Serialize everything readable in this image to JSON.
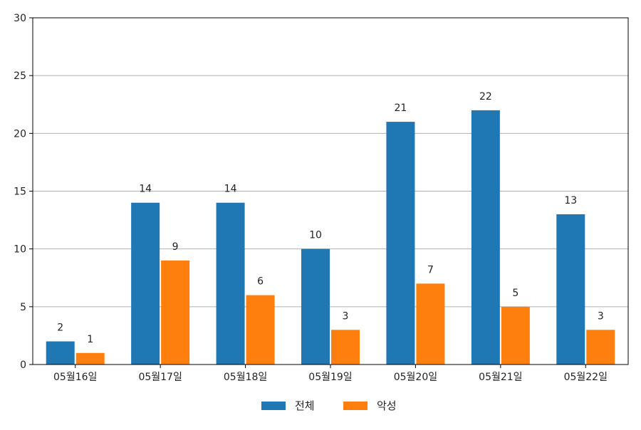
{
  "chart_data": {
    "type": "bar",
    "categories": [
      "05월16일",
      "05월17일",
      "05월18일",
      "05월19일",
      "05월20일",
      "05월21일",
      "05월22일"
    ],
    "series": [
      {
        "name": "전체",
        "color": "#1f77b4",
        "values": [
          2,
          14,
          14,
          10,
          21,
          22,
          13
        ]
      },
      {
        "name": "악성",
        "color": "#ff7f0e",
        "values": [
          1,
          9,
          6,
          3,
          7,
          5,
          3
        ]
      }
    ],
    "title": "",
    "xlabel": "",
    "ylabel": "",
    "ylim": [
      0,
      30
    ],
    "yticks": [
      0,
      5,
      10,
      15,
      20,
      25,
      30
    ],
    "grid": "horizontal",
    "legend_position": "bottom-center",
    "show_data_labels": true
  }
}
